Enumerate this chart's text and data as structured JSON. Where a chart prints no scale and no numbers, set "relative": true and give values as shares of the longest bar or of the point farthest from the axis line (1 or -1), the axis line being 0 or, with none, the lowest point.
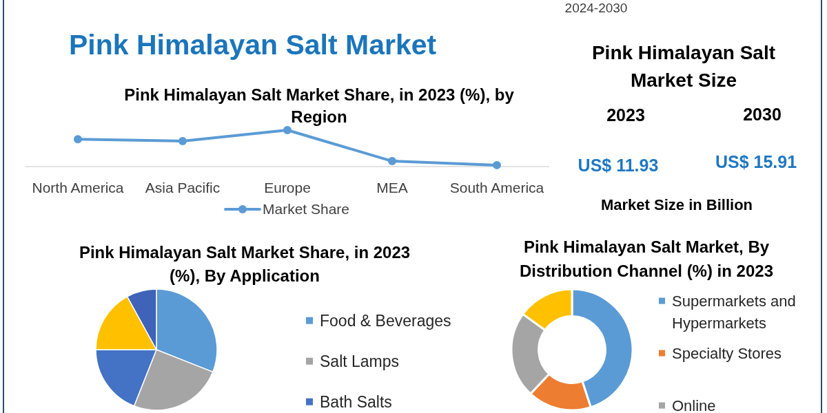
{
  "chart_data": [
    {
      "type": "other",
      "title": "Pink Himalayan Salt Market",
      "annotations": [
        "2024-2030"
      ]
    },
    {
      "type": "line",
      "title": "Pink Himalayan Salt Market Share, in 2023 (%), by Region",
      "categories": [
        "North America",
        "Asia Pacific",
        "Europe",
        "MEA",
        "South America"
      ],
      "relative": true,
      "series": [
        {
          "name": "Market Share",
          "color": "#5b9bd5",
          "values": [
            0.75,
            0.7,
            1,
            0.15,
            0.04
          ]
        }
      ],
      "marker": "circle",
      "legend": "bottom"
    },
    {
      "type": "other",
      "title": "Pink Himalayan Salt Market Size",
      "annotations": [
        "2023",
        "2030",
        "US$ 11.93",
        "US$ 15.91",
        "Market Size in Billion"
      ]
    },
    {
      "type": "pie",
      "title": "Pink Himalayan Salt Market Share, in 2023 (%), By Application",
      "categories": [
        "Food & Beverages",
        "Salt Lamps",
        "Bath Salts",
        null,
        null
      ],
      "values": [
        31,
        25,
        19,
        17,
        8
      ],
      "colors": [
        "#5b9bd5",
        "#a5a5a5",
        "#4472c4",
        "#ffc000",
        "#3e63b8"
      ],
      "legend": "right"
    },
    {
      "type": "donut",
      "title": "Pink Himalayan Salt Market, By Distribution Channel (%) in 2023",
      "categories": [
        "Supermarkets and Hypermarkets",
        "Specialty Stores",
        "Online",
        null
      ],
      "values": [
        45,
        17,
        23,
        15
      ],
      "colors": [
        "#5b9bd5",
        "#ed7d31",
        "#a5a5a5",
        "#ffc000"
      ],
      "legend": "right"
    }
  ]
}
